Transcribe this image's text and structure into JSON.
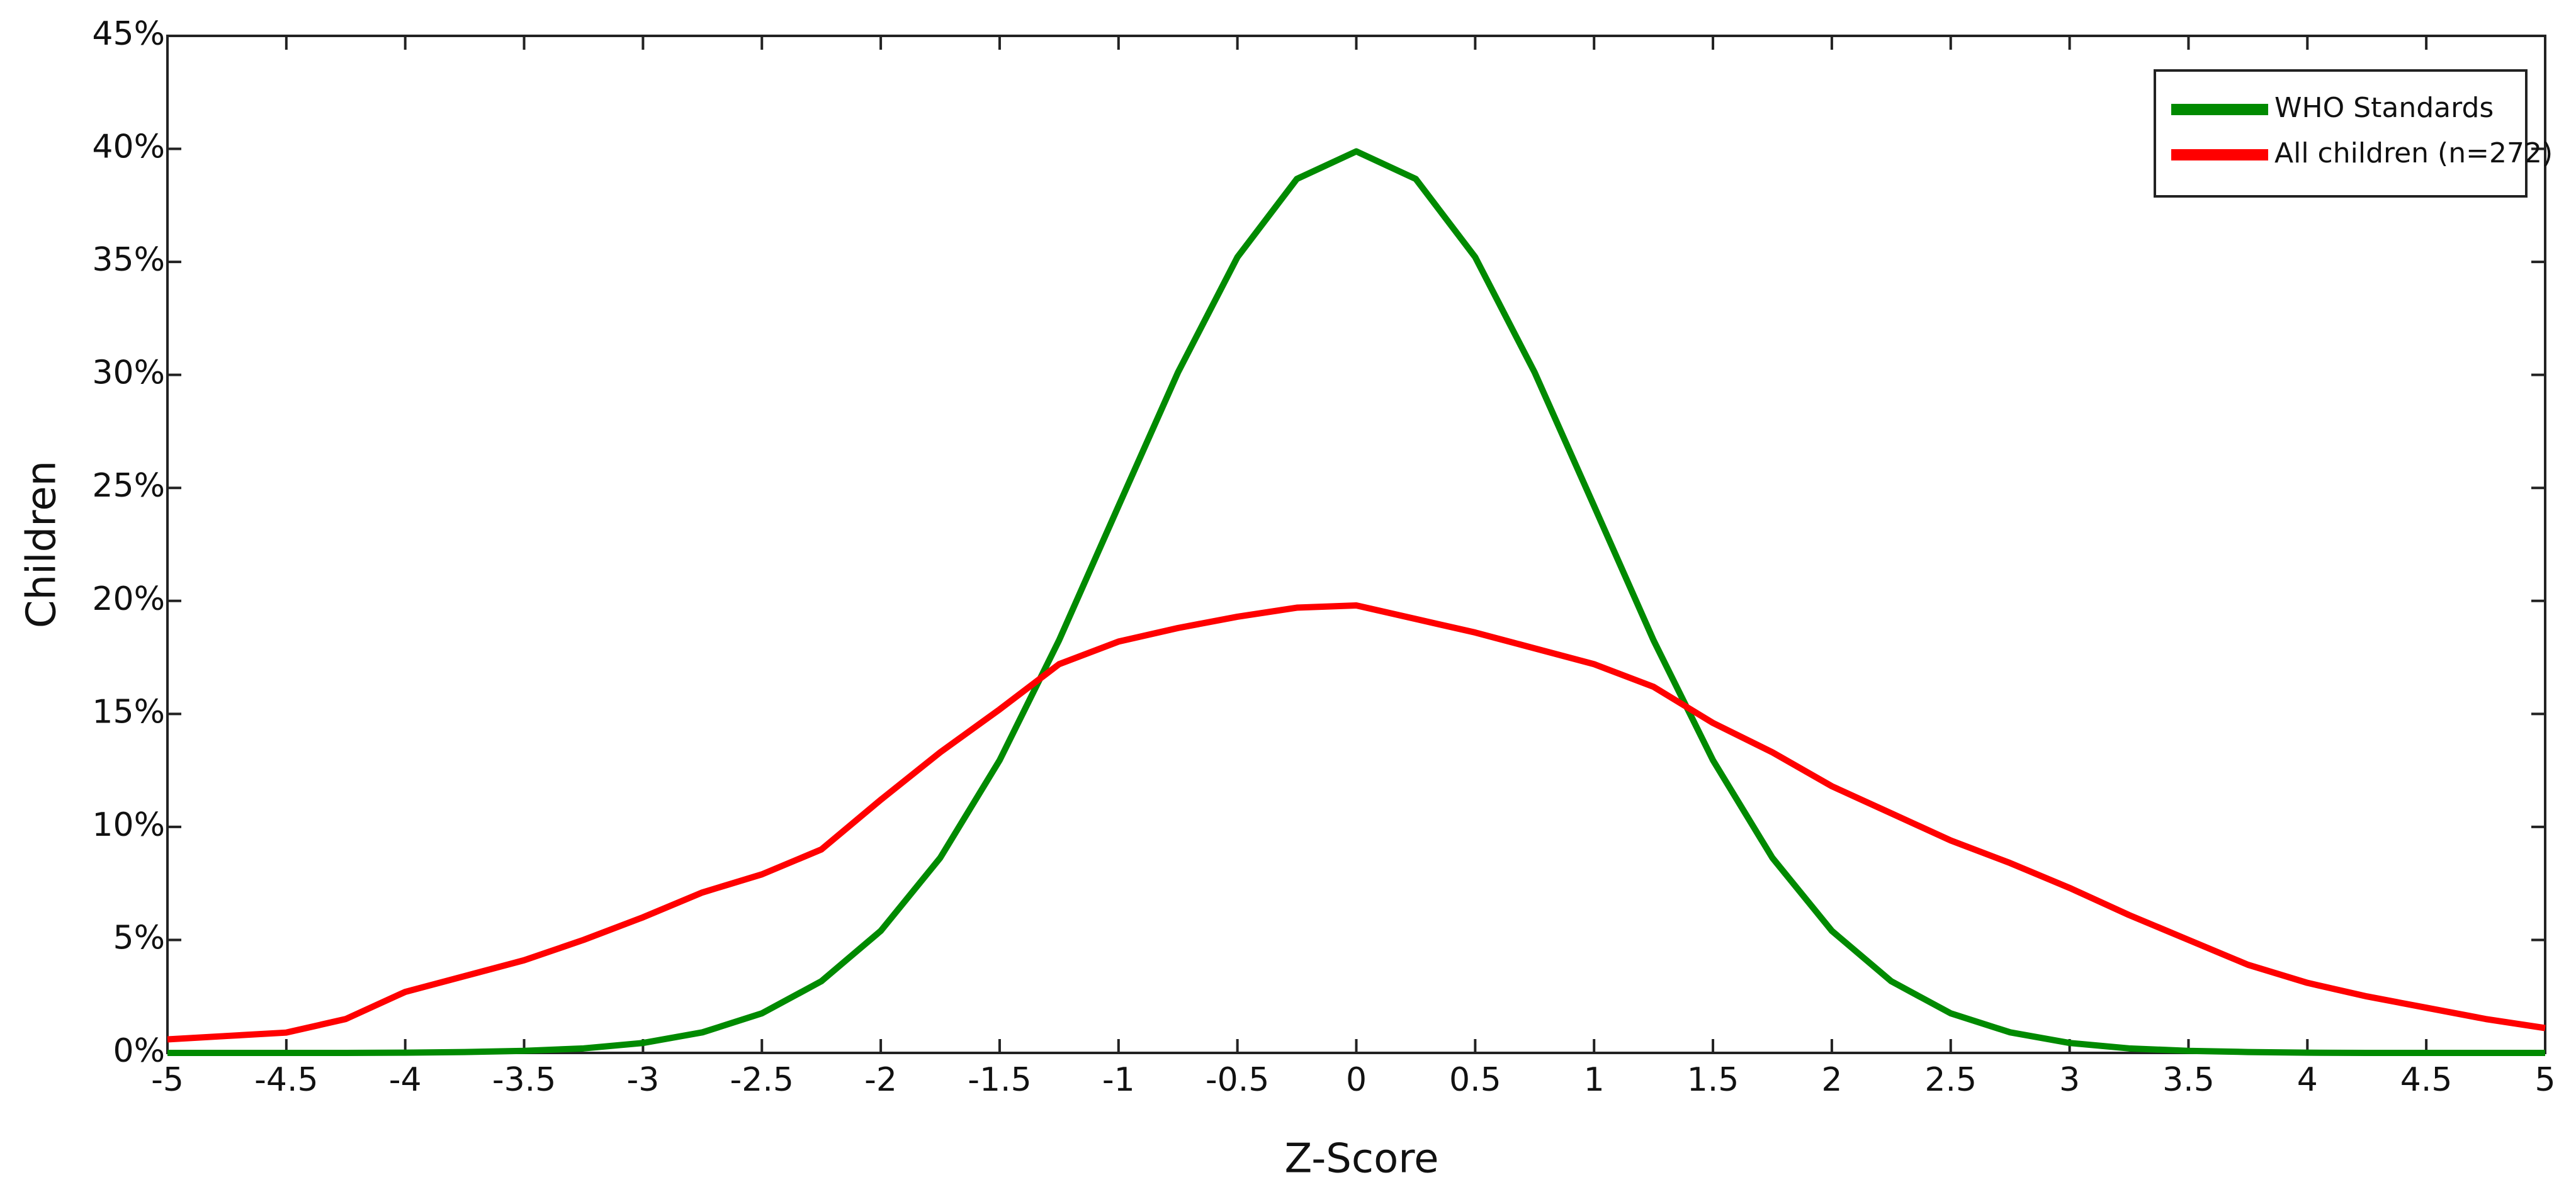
{
  "chart_data": {
    "type": "line",
    "x_label": "Z-Score",
    "y_label": "Children",
    "x": [
      -5,
      -4.75,
      -4.5,
      -4.25,
      -4,
      -3.75,
      -3.5,
      -3.25,
      -3,
      -2.75,
      -2.5,
      -2.25,
      -2,
      -1.75,
      -1.5,
      -1.25,
      -1,
      -0.75,
      -0.5,
      -0.25,
      0,
      0.25,
      0.5,
      0.75,
      1,
      1.25,
      1.5,
      1.75,
      2,
      2.25,
      2.5,
      2.75,
      3,
      3.25,
      3.5,
      3.75,
      4,
      4.25,
      4.5,
      4.75,
      5
    ],
    "series": [
      {
        "name": "WHO Standards",
        "color": "#008a00",
        "values": [
          0,
          0,
          0,
          0,
          0.01,
          0.04,
          0.09,
          0.2,
          0.44,
          0.91,
          1.75,
          3.17,
          5.4,
          8.63,
          12.95,
          18.26,
          24.2,
          30.11,
          35.21,
          38.67,
          39.89,
          38.67,
          35.21,
          30.11,
          24.2,
          18.26,
          12.95,
          8.63,
          5.4,
          3.17,
          1.75,
          0.91,
          0.44,
          0.2,
          0.09,
          0.04,
          0.01,
          0,
          0,
          0,
          0
        ]
      },
      {
        "name": "All children (n=272)",
        "color": "#ff0000",
        "values": [
          0.6,
          0.75,
          0.9,
          1.5,
          2.7,
          3.4,
          4.1,
          5.0,
          6.0,
          7.1,
          7.9,
          9.0,
          11.2,
          13.3,
          15.2,
          17.2,
          18.2,
          18.8,
          19.3,
          19.7,
          19.8,
          19.2,
          18.6,
          17.9,
          17.2,
          16.2,
          14.6,
          13.3,
          11.8,
          10.6,
          9.4,
          8.4,
          7.3,
          6.1,
          5.0,
          3.9,
          3.1,
          2.5,
          2.0,
          1.5,
          1.1
        ]
      }
    ],
    "xlim": [
      -5,
      5
    ],
    "ylim": [
      0,
      45
    ],
    "xticks": [
      -5,
      -4.5,
      -4,
      -3.5,
      -3,
      -2.5,
      -2,
      -1.5,
      -1,
      -0.5,
      0,
      0.5,
      1,
      1.5,
      2,
      2.5,
      3,
      3.5,
      4,
      4.5,
      5
    ],
    "yticks": [
      {
        "value": 0,
        "label": "0%"
      },
      {
        "value": 5,
        "label": "5%"
      },
      {
        "value": 10,
        "label": "10%"
      },
      {
        "value": 15,
        "label": "15%"
      },
      {
        "value": 20,
        "label": "20%"
      },
      {
        "value": 25,
        "label": "25%"
      },
      {
        "value": 30,
        "label": "30%"
      },
      {
        "value": 35,
        "label": "35%"
      },
      {
        "value": 40,
        "label": "40%"
      },
      {
        "value": 45,
        "label": "45%"
      }
    ],
    "legend": "top-right"
  }
}
